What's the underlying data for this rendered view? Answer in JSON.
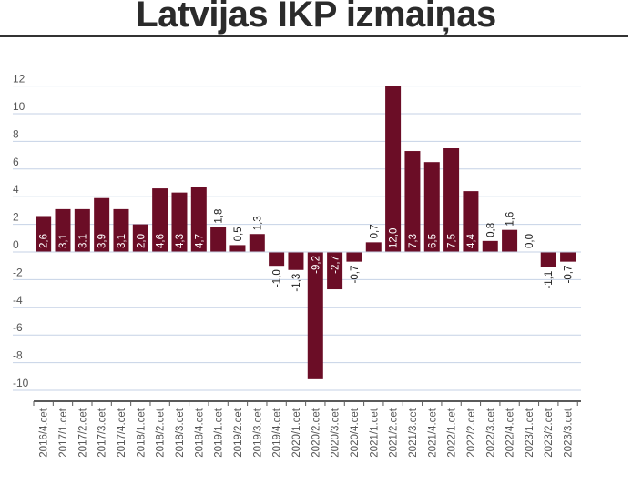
{
  "colors": {
    "bar": "#6b0d26",
    "grid": "#c6d2e6",
    "axis": "#5a5a5a",
    "label_inside": "#ffffff",
    "label_outside": "#222222"
  },
  "chart_data": {
    "type": "bar",
    "title": "Latvijas IKP izmaiņas",
    "xlabel": "",
    "ylabel": "",
    "ylim": [
      -10,
      12
    ],
    "yticks": [
      12,
      10,
      8,
      6,
      4,
      2,
      0,
      -2,
      -4,
      -6,
      -8,
      -10
    ],
    "grid": true,
    "categories": [
      "2016/4.cet",
      "2017/1.cet",
      "2017/2.cet",
      "2017/3.cet",
      "2017/4.cet",
      "2018/1.cet",
      "2018/2.cet",
      "2018/3.cet",
      "2018/4.cet",
      "2019/1.cet",
      "2019/2.cet",
      "2019/3.cet",
      "2019/4.cet",
      "2020/1.cet",
      "2020/2.cet",
      "2020/3.cet",
      "2020/4.cet",
      "2021/1.cet",
      "2021/2.cet",
      "2021/3.cet",
      "2021/4.cet",
      "2022/1.cet",
      "2022/2.cet",
      "2022/3.cet",
      "2022/4.cet",
      "2023/1.cet",
      "2023/2.cet",
      "2023/3.cet"
    ],
    "values": [
      2.6,
      3.1,
      3.1,
      3.9,
      3.1,
      2.0,
      4.6,
      4.3,
      4.7,
      1.8,
      0.5,
      1.3,
      -1.0,
      -1.3,
      -9.2,
      -2.7,
      -0.7,
      0.7,
      12.0,
      7.3,
      6.5,
      7.5,
      4.4,
      0.8,
      1.6,
      0.0,
      -1.1,
      -0.7
    ],
    "data_labels": [
      "2,6",
      "3,1",
      "3,1",
      "3,9",
      "3,1",
      "2,0",
      "4,6",
      "4,3",
      "4,7",
      "1,8",
      "0,5",
      "1,3",
      "-1,0",
      "-1,3",
      "-9,2",
      "-2,7",
      "-0,7",
      "0,7",
      "12,0",
      "7,3",
      "6,5",
      "7,5",
      "4,4",
      "0,8",
      "1,6",
      "0,0",
      "-1,1",
      "-0,7"
    ]
  }
}
